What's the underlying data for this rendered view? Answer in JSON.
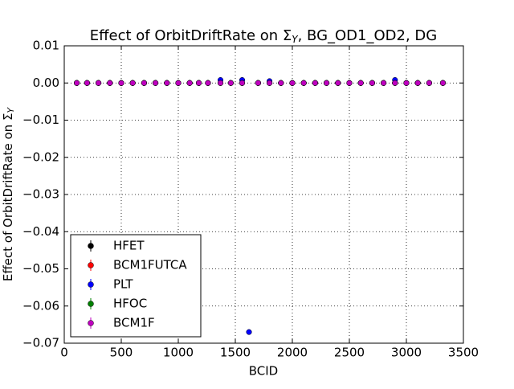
{
  "chart_data": {
    "type": "scatter",
    "title": [
      "Effect of OrbitDriftRate on Σ",
      "Y",
      ", BG_OD1_OD2, DG"
    ],
    "xlabel": "BCID",
    "ylabel": [
      "Effect of OrbitDriftRate on Σ",
      "Y"
    ],
    "x": [
      110,
      200,
      300,
      400,
      500,
      600,
      700,
      800,
      900,
      1000,
      1100,
      1180,
      1260,
      1370,
      1460,
      1560,
      1620,
      1700,
      1800,
      1900,
      2000,
      2100,
      2200,
      2300,
      2400,
      2500,
      2600,
      2700,
      2800,
      2900,
      3000,
      3100,
      3200,
      3320
    ],
    "series": [
      {
        "name": "HFET",
        "color": "#000000",
        "values": [
          0,
          0,
          0,
          0,
          0,
          0,
          0,
          0,
          0,
          0,
          0,
          0,
          0,
          0,
          0,
          0,
          null,
          0,
          0,
          0,
          0,
          0,
          0,
          0,
          0,
          0,
          0,
          0,
          0,
          0,
          0,
          0,
          0,
          0
        ]
      },
      {
        "name": "BCM1FUTCA",
        "color": "#ff0000",
        "values": [
          0,
          0,
          0,
          0,
          0,
          0,
          0,
          0,
          0,
          0,
          0,
          0,
          0,
          0,
          0,
          0,
          null,
          0,
          0,
          0,
          0,
          0,
          0,
          0,
          0,
          0,
          0,
          0,
          0,
          0,
          0,
          0,
          0,
          0
        ]
      },
      {
        "name": "PLT",
        "color": "#0000ff",
        "values": [
          0,
          0,
          0,
          0,
          0,
          0,
          0,
          0,
          0,
          0,
          0,
          0,
          0,
          0.0008,
          0,
          0.0008,
          -0.067,
          0,
          0.0005,
          0,
          0,
          0,
          0,
          0,
          0,
          0,
          0,
          0,
          0,
          0.0008,
          0,
          0,
          0,
          0
        ]
      },
      {
        "name": "HFOC",
        "color": "#008000",
        "values": [
          0,
          0,
          0,
          0,
          0,
          0,
          0,
          0,
          0,
          0,
          0,
          0,
          0,
          0,
          0,
          0,
          null,
          0,
          0,
          0,
          0,
          0,
          0,
          0,
          0,
          0,
          0,
          0,
          0,
          0,
          0,
          0,
          0,
          0
        ]
      },
      {
        "name": "BCM1F",
        "color": "#bf00bf",
        "values": [
          0,
          0,
          0,
          0,
          0,
          0,
          0,
          0,
          0,
          0,
          0,
          0,
          0,
          0,
          0,
          0,
          null,
          0,
          0,
          0,
          0,
          0,
          0,
          0,
          0,
          0,
          0,
          0,
          0,
          0,
          0,
          0,
          0,
          0
        ]
      }
    ],
    "xlim": [
      0,
      3500
    ],
    "xticks": [
      0,
      500,
      1000,
      1500,
      2000,
      2500,
      3000,
      3500
    ],
    "ylim": [
      -0.07,
      0.01
    ],
    "yticks": [
      0.01,
      {
        "value": 0,
        "label": "0.00"
      },
      {
        "value": -0.01,
        "label": "−0.01"
      },
      {
        "value": -0.02,
        "label": "−0.02"
      },
      {
        "value": -0.03,
        "label": "−0.03"
      },
      {
        "value": -0.04,
        "label": "−0.04"
      },
      {
        "value": -0.05,
        "label": "−0.05"
      },
      {
        "value": -0.06,
        "label": "−0.06"
      },
      {
        "value": -0.07,
        "label": "−0.07"
      }
    ],
    "grid": true,
    "legend": "lower left"
  }
}
